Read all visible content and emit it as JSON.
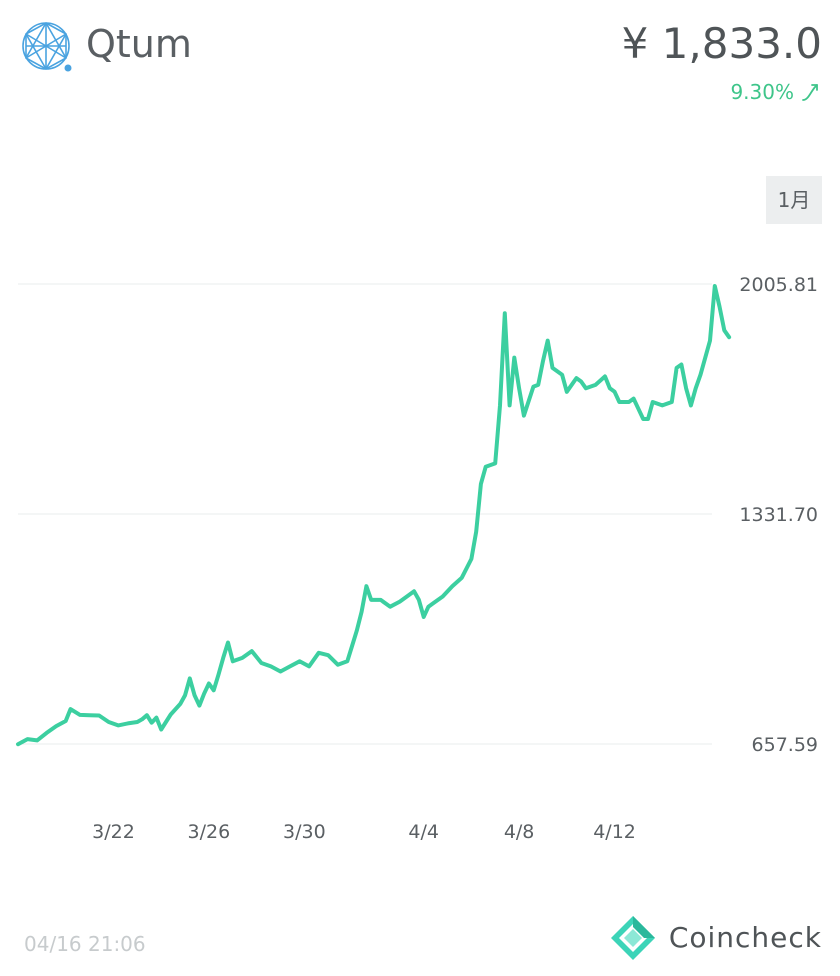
{
  "header": {
    "coin_name": "Qtum",
    "logo_icon": "qtum-logo-icon",
    "price": "¥ 1,833.0",
    "change_percent": "9.30%",
    "change_direction_icon": "trend-up-icon",
    "up_color": "#3ec58a"
  },
  "range_selector": {
    "selected_label": "1月"
  },
  "chart_data": {
    "type": "line",
    "y_tick_labels": [
      "2005.81",
      "1331.70",
      "657.59"
    ],
    "y_ticks": [
      2005.81,
      1331.7,
      657.59
    ],
    "x_tick_labels": [
      "3/22",
      "3/26",
      "3/30",
      "4/4",
      "4/8",
      "4/12"
    ],
    "x_tick_days": [
      4,
      8,
      12,
      17,
      21,
      25
    ],
    "x_range_days": [
      0,
      29
    ],
    "grid": true,
    "series": [
      {
        "color": "#3ccfa0",
        "points": [
          [
            0.0,
            657
          ],
          [
            0.4,
            672
          ],
          [
            0.8,
            668
          ],
          [
            1.2,
            690
          ],
          [
            1.6,
            710
          ],
          [
            2.0,
            725
          ],
          [
            2.2,
            760
          ],
          [
            2.6,
            743
          ],
          [
            3.0,
            742
          ],
          [
            3.4,
            741
          ],
          [
            3.8,
            722
          ],
          [
            4.2,
            712
          ],
          [
            4.6,
            718
          ],
          [
            5.0,
            722
          ],
          [
            5.2,
            730
          ],
          [
            5.4,
            742
          ],
          [
            5.6,
            720
          ],
          [
            5.8,
            735
          ],
          [
            6.0,
            700
          ],
          [
            6.4,
            744
          ],
          [
            6.8,
            775
          ],
          [
            7.0,
            800
          ],
          [
            7.2,
            850
          ],
          [
            7.4,
            800
          ],
          [
            7.6,
            770
          ],
          [
            7.8,
            805
          ],
          [
            8.0,
            835
          ],
          [
            8.2,
            815
          ],
          [
            8.4,
            860
          ],
          [
            8.6,
            910
          ],
          [
            8.8,
            955
          ],
          [
            9.0,
            900
          ],
          [
            9.4,
            910
          ],
          [
            9.8,
            930
          ],
          [
            10.2,
            895
          ],
          [
            10.6,
            885
          ],
          [
            11.0,
            870
          ],
          [
            11.4,
            885
          ],
          [
            11.8,
            900
          ],
          [
            12.2,
            885
          ],
          [
            12.6,
            925
          ],
          [
            13.0,
            918
          ],
          [
            13.4,
            890
          ],
          [
            13.8,
            900
          ],
          [
            14.0,
            945
          ],
          [
            14.2,
            990
          ],
          [
            14.4,
            1045
          ],
          [
            14.6,
            1120
          ],
          [
            14.8,
            1080
          ],
          [
            15.2,
            1080
          ],
          [
            15.6,
            1060
          ],
          [
            16.0,
            1075
          ],
          [
            16.4,
            1095
          ],
          [
            16.6,
            1105
          ],
          [
            16.8,
            1080
          ],
          [
            17.0,
            1030
          ],
          [
            17.2,
            1060
          ],
          [
            17.4,
            1070
          ],
          [
            17.8,
            1090
          ],
          [
            18.2,
            1120
          ],
          [
            18.6,
            1145
          ],
          [
            19.0,
            1200
          ],
          [
            19.2,
            1280
          ],
          [
            19.4,
            1420
          ],
          [
            19.6,
            1470
          ],
          [
            20.0,
            1480
          ],
          [
            20.2,
            1650
          ],
          [
            20.4,
            1920
          ],
          [
            20.6,
            1650
          ],
          [
            20.8,
            1790
          ],
          [
            21.0,
            1700
          ],
          [
            21.2,
            1620
          ],
          [
            21.6,
            1705
          ],
          [
            21.8,
            1710
          ],
          [
            22.0,
            1780
          ],
          [
            22.2,
            1840
          ],
          [
            22.4,
            1760
          ],
          [
            22.8,
            1740
          ],
          [
            23.0,
            1690
          ],
          [
            23.4,
            1730
          ],
          [
            23.6,
            1720
          ],
          [
            23.8,
            1700
          ],
          [
            24.2,
            1710
          ],
          [
            24.6,
            1735
          ],
          [
            24.8,
            1700
          ],
          [
            25.0,
            1690
          ],
          [
            25.2,
            1660
          ],
          [
            25.6,
            1660
          ],
          [
            25.8,
            1670
          ],
          [
            26.0,
            1640
          ],
          [
            26.2,
            1610
          ],
          [
            26.4,
            1610
          ],
          [
            26.6,
            1660
          ],
          [
            27.0,
            1650
          ],
          [
            27.4,
            1660
          ],
          [
            27.6,
            1760
          ],
          [
            27.8,
            1770
          ],
          [
            28.0,
            1700
          ],
          [
            28.2,
            1650
          ],
          [
            28.4,
            1700
          ],
          [
            28.6,
            1740
          ],
          [
            29.0,
            1840
          ],
          [
            29.2,
            2000
          ],
          [
            29.4,
            1940
          ],
          [
            29.6,
            1870
          ],
          [
            29.8,
            1850
          ]
        ]
      }
    ]
  },
  "footer": {
    "timestamp": "04/16 21:06",
    "brand_name": "Coincheck",
    "brand_icon": "coincheck-logo-icon"
  }
}
